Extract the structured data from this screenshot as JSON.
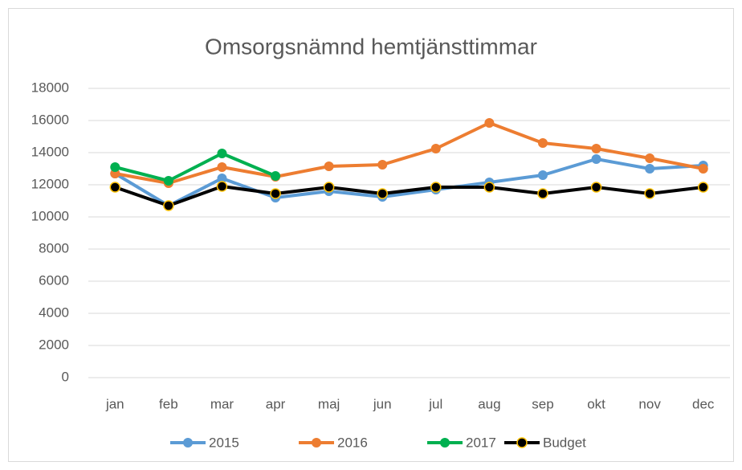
{
  "chart_data": {
    "type": "line",
    "title": "Omsorgsnämnd hemtjänsttimmar",
    "categories": [
      "jan",
      "feb",
      "mar",
      "apr",
      "maj",
      "jun",
      "jul",
      "aug",
      "sep",
      "okt",
      "nov",
      "dec"
    ],
    "series": [
      {
        "name": "2015",
        "color": "#5b9bd5",
        "values": [
          12700,
          10700,
          12400,
          11200,
          11600,
          11250,
          11700,
          12150,
          12600,
          13600,
          13000,
          13200
        ]
      },
      {
        "name": "2016",
        "color": "#ed7d31",
        "values": [
          12700,
          12100,
          13100,
          12500,
          13150,
          13250,
          14250,
          15850,
          14600,
          14250,
          13650,
          13000
        ]
      },
      {
        "name": "2017",
        "color": "#00b050",
        "values": [
          13100,
          12250,
          13950,
          12550,
          null,
          null,
          null,
          null,
          null,
          null,
          null,
          null
        ]
      },
      {
        "name": "Budget",
        "color": "#000000",
        "marker_edge": "#ffc000",
        "values": [
          11850,
          10700,
          11900,
          11450,
          11850,
          11450,
          11850,
          11850,
          11450,
          11850,
          11450,
          11850
        ]
      }
    ],
    "ylim": [
      0,
      18000
    ],
    "yticks": [
      0,
      2000,
      4000,
      6000,
      8000,
      10000,
      12000,
      14000,
      16000,
      18000
    ],
    "grid": true,
    "legend": "bottom"
  }
}
